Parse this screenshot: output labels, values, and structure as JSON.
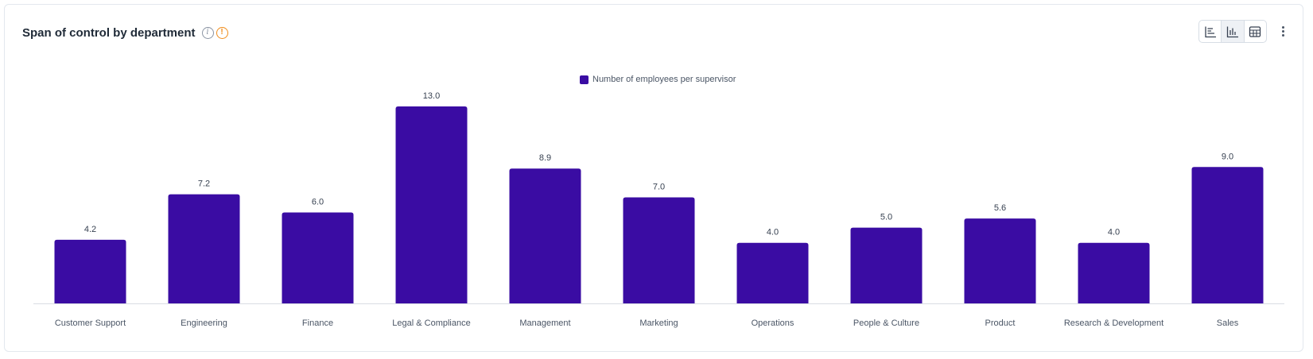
{
  "header": {
    "title": "Span of control by department"
  },
  "icons": {
    "info": "info-icon",
    "warning": "warning-icon"
  },
  "view_toggle": [
    {
      "name": "horizontal-bar-chart-icon",
      "active": false
    },
    {
      "name": "vertical-bar-chart-icon",
      "active": true
    },
    {
      "name": "table-icon",
      "active": false
    }
  ],
  "colors": {
    "bar": "#3a0ca3",
    "axis": "#d9dde3",
    "label": "#4a5565"
  },
  "chart_data": {
    "type": "bar",
    "categories": [
      "Customer Support",
      "Engineering",
      "Finance",
      "Legal & Compliance",
      "Management",
      "Marketing",
      "Operations",
      "People & Culture",
      "Product",
      "Research & Development",
      "Sales"
    ],
    "series": [
      {
        "name": "Number of employees per supervisor",
        "values": [
          4.2,
          7.2,
          6.0,
          13.0,
          8.9,
          7.0,
          4.0,
          5.0,
          5.6,
          4.0,
          9.0
        ]
      }
    ],
    "value_labels": [
      "4.2",
      "7.2",
      "6.0",
      "13.0",
      "8.9",
      "7.0",
      "4.0",
      "5.0",
      "5.6",
      "4.0",
      "9.0"
    ],
    "ylim": [
      0,
      13
    ],
    "grid": false,
    "legend_position": "top-center"
  }
}
